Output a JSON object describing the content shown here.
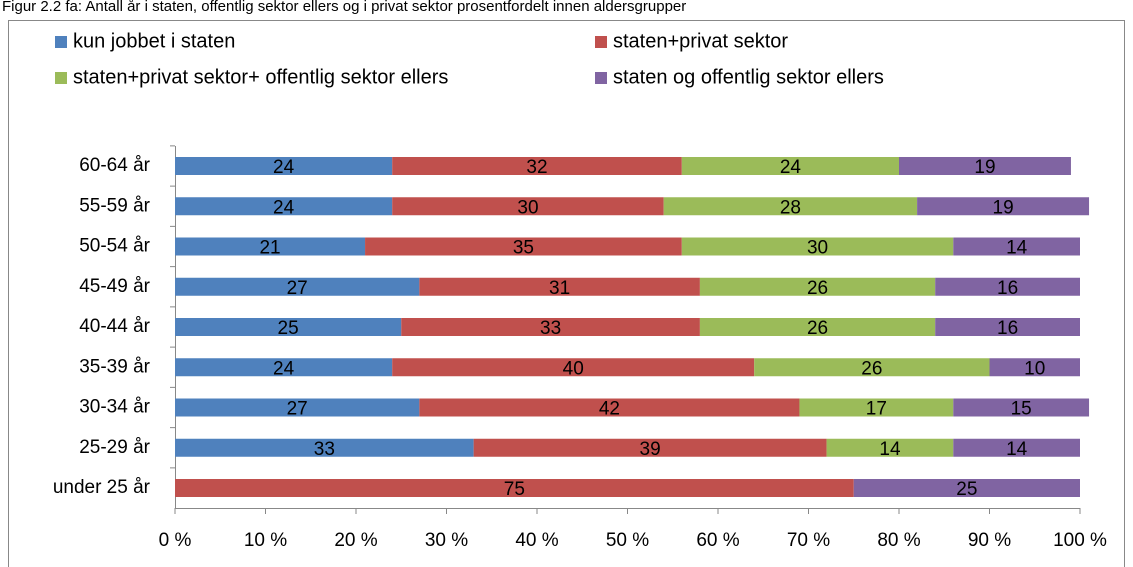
{
  "chart_data": {
    "type": "stacked-barh",
    "title": "Figur 2.2 fa: Antall år i staten, offentlig sektor ellers og i privat sektor prosentfordelt innen aldersgrupper",
    "categories": [
      "60-64 år",
      "55-59 år",
      "50-54 år",
      "45-49 år",
      "40-44 år",
      "35-39 år",
      "30-34 år",
      "25-29 år",
      "under 25 år"
    ],
    "series": [
      {
        "name": "kun jobbet i staten",
        "color": "#4f81bd",
        "values": [
          24,
          24,
          21,
          27,
          25,
          24,
          27,
          33,
          null
        ]
      },
      {
        "name": "staten+privat sektor",
        "color": "#c0504d",
        "values": [
          32,
          30,
          35,
          31,
          33,
          40,
          42,
          39,
          75
        ]
      },
      {
        "name": "staten+privat sektor+ offentlig sektor ellers",
        "color": "#9bbb59",
        "values": [
          24,
          28,
          30,
          26,
          26,
          26,
          17,
          14,
          null
        ]
      },
      {
        "name": "staten og offentlig sektor ellers",
        "color": "#8064a2",
        "values": [
          19,
          19,
          14,
          16,
          16,
          10,
          15,
          14,
          25
        ]
      }
    ],
    "xlim": [
      0,
      100
    ],
    "xticks": [
      {
        "value": 0,
        "label": "0 %"
      },
      {
        "value": 10,
        "label": "10 %"
      },
      {
        "value": 20,
        "label": "20 %"
      },
      {
        "value": 30,
        "label": "30 %"
      },
      {
        "value": 40,
        "label": "40 %"
      },
      {
        "value": 50,
        "label": "50 %"
      },
      {
        "value": 60,
        "label": "60 %"
      },
      {
        "value": 70,
        "label": "70 %"
      },
      {
        "value": 80,
        "label": "80 %"
      },
      {
        "value": 90,
        "label": "90 %"
      },
      {
        "value": 100,
        "label": "100 %"
      }
    ]
  }
}
